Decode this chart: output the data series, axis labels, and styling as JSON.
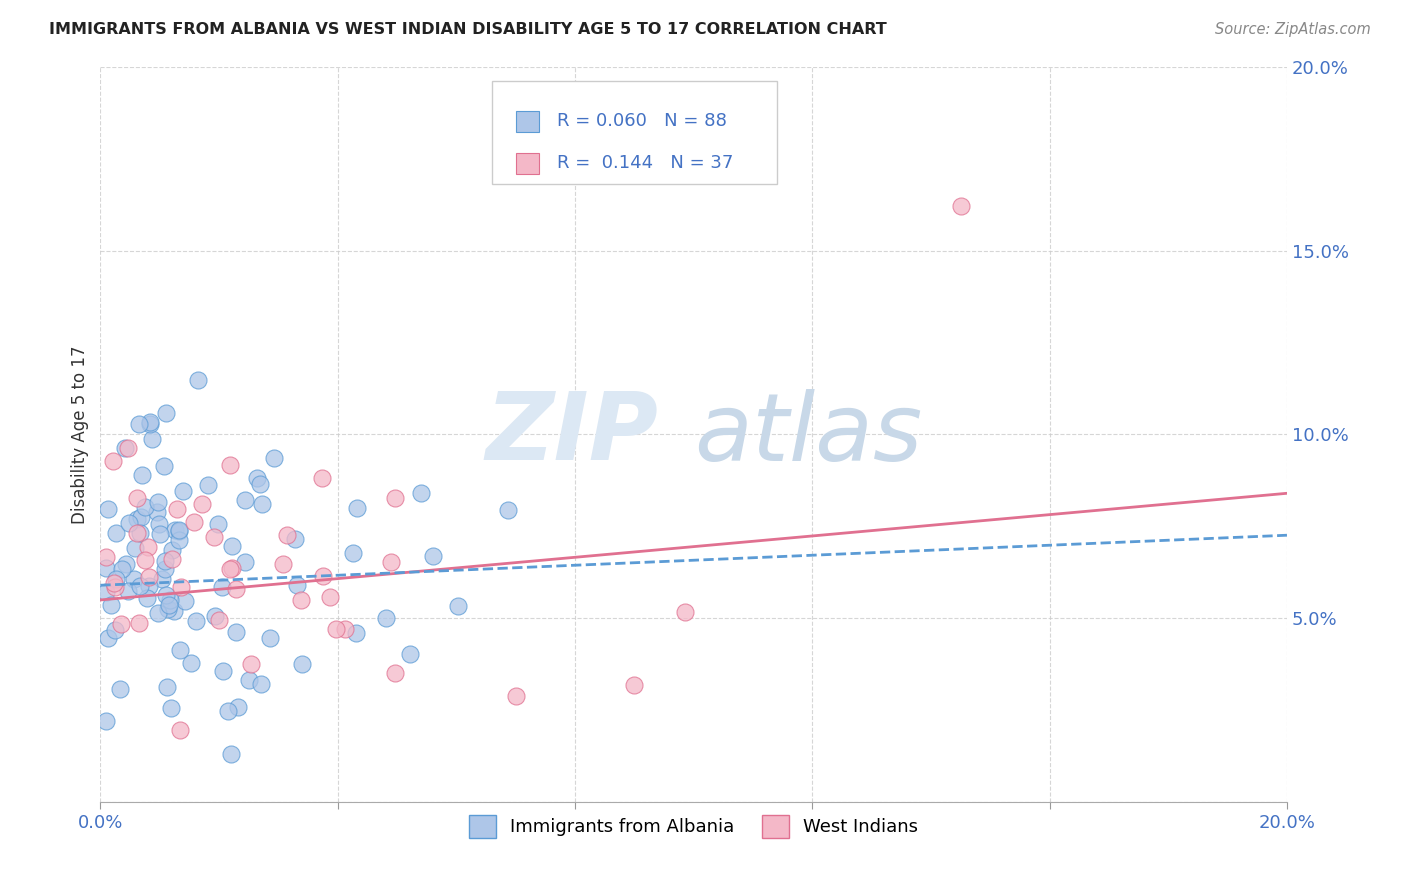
{
  "title": "IMMIGRANTS FROM ALBANIA VS WEST INDIAN DISABILITY AGE 5 TO 17 CORRELATION CHART",
  "source": "Source: ZipAtlas.com",
  "ylabel": "Disability Age 5 to 17",
  "xlim": [
    0.0,
    0.2
  ],
  "ylim": [
    0.0,
    0.2
  ],
  "albania_color": "#aec6e8",
  "albania_edge_color": "#5b9bd5",
  "west_indian_color": "#f4b8c8",
  "west_indian_edge_color": "#e07090",
  "albania_R": 0.06,
  "albania_N": 88,
  "west_indian_R": 0.144,
  "west_indian_N": 37,
  "legend_label_albania": "Immigrants from Albania",
  "legend_label_west_indian": "West Indians",
  "watermark_zip": "ZIP",
  "watermark_atlas": "atlas",
  "background_color": "#ffffff",
  "grid_color": "#cccccc",
  "title_color": "#222222",
  "axis_tick_color": "#4472c4",
  "albania_line_color": "#5b9bd5",
  "west_indian_line_color": "#e07090",
  "albania_intercept": 0.059,
  "albania_slope": 0.068,
  "west_indian_intercept": 0.055,
  "west_indian_slope": 0.145
}
